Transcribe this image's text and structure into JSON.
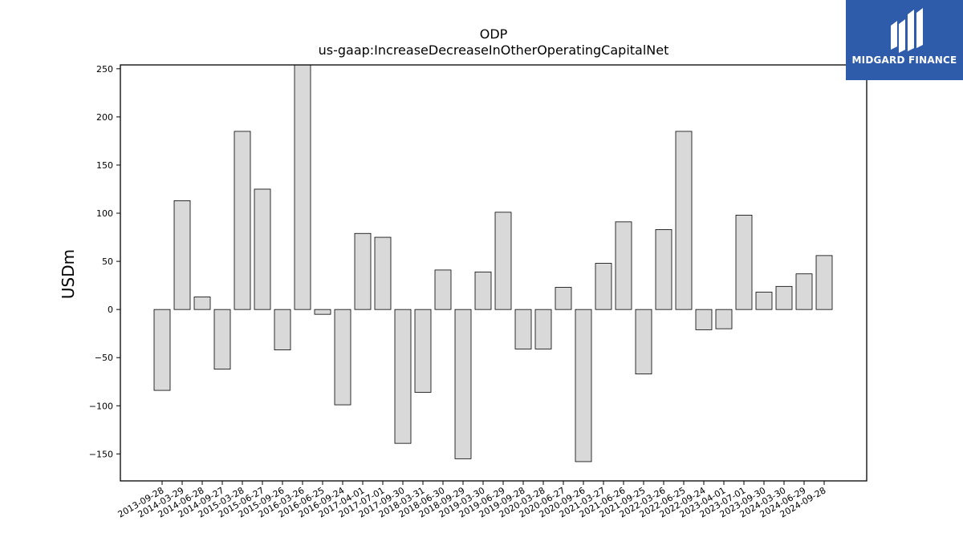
{
  "brand": {
    "name": "MIDGARD FINANCE",
    "bg_color": "#2f5bab",
    "icon": "midgard-logo-icon"
  },
  "chart_data": {
    "type": "bar",
    "title": "ODP",
    "subtitle": "us-gaap:IncreaseDecreaseInOtherOperatingCapitalNet",
    "xlabel": "",
    "ylabel": "USDm",
    "ylim": [
      -178,
      254
    ],
    "yticks": [
      -150,
      -100,
      -50,
      0,
      50,
      100,
      150,
      200,
      250
    ],
    "grid": false,
    "bar_color": "#d9d9d9",
    "bar_edge_color": "#000000",
    "categories": [
      "2013-09-28",
      "2014-03-29",
      "2014-06-28",
      "2014-09-27",
      "2015-03-28",
      "2015-06-27",
      "2015-09-26",
      "2016-03-26",
      "2016-06-25",
      "2016-09-24",
      "2017-04-01",
      "2017-07-01",
      "2017-09-30",
      "2018-03-31",
      "2018-06-30",
      "2018-09-29",
      "2019-03-30",
      "2019-06-29",
      "2019-09-28",
      "2020-03-28",
      "2020-06-27",
      "2020-09-26",
      "2021-03-27",
      "2021-06-26",
      "2021-09-25",
      "2022-03-26",
      "2022-06-25",
      "2022-09-24",
      "2023-04-01",
      "2023-07-01",
      "2023-09-30",
      "2024-03-30",
      "2024-06-29",
      "2024-09-28"
    ],
    "values": [
      -84,
      113,
      13,
      -62,
      185,
      125,
      -42,
      254,
      -5,
      -99,
      79,
      75,
      -139,
      -86,
      41,
      -155,
      39,
      101,
      -41,
      -41,
      23,
      -158,
      48,
      91,
      -67,
      83,
      185,
      -21,
      -20,
      98,
      18,
      24,
      37,
      56
    ]
  }
}
